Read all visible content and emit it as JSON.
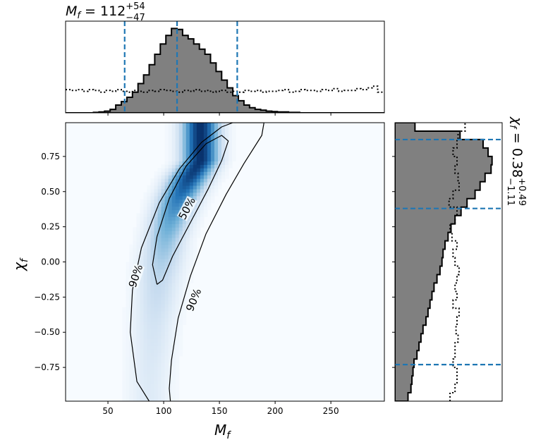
{
  "chart_data": [
    {
      "type": "heatmap",
      "panel": "joint",
      "xlabel_main": "M",
      "xlabel_sub": "f",
      "ylabel_main": "χ",
      "ylabel_sub": "f",
      "xlim": [
        12,
        298
      ],
      "ylim": [
        -0.99,
        0.99
      ],
      "xticks": [
        50,
        100,
        150,
        200,
        250
      ],
      "yticks": [
        0.75,
        0.5,
        0.25,
        0.0,
        -0.25,
        -0.5,
        -0.75
      ],
      "xtick_labels": [
        "50",
        "100",
        "150",
        "200",
        "250"
      ],
      "ytick_labels": [
        "0.75",
        "0.50",
        "0.25",
        "0.00",
        "−0.25",
        "−0.50",
        "−0.75"
      ],
      "colormap": "Blues",
      "ridge": [
        {
          "y": 0.72,
          "x": 133,
          "sigma": 11,
          "weight": 1.0
        },
        {
          "y": 0.6,
          "x": 123,
          "sigma": 12,
          "weight": 0.92
        },
        {
          "y": 0.45,
          "x": 113,
          "sigma": 12,
          "weight": 0.72
        },
        {
          "y": 0.3,
          "x": 106,
          "sigma": 12,
          "weight": 0.55
        },
        {
          "y": 0.15,
          "x": 101,
          "sigma": 12,
          "weight": 0.42
        },
        {
          "y": 0.0,
          "x": 98,
          "sigma": 13,
          "weight": 0.32
        },
        {
          "y": -0.15,
          "x": 95,
          "sigma": 13,
          "weight": 0.26
        },
        {
          "y": -0.3,
          "x": 93,
          "sigma": 13,
          "weight": 0.22
        },
        {
          "y": -0.45,
          "x": 91,
          "sigma": 13,
          "weight": 0.18
        },
        {
          "y": -0.6,
          "x": 90,
          "sigma": 13,
          "weight": 0.16
        },
        {
          "y": -0.75,
          "x": 88,
          "sigma": 13,
          "weight": 0.14
        },
        {
          "y": -0.9,
          "x": 87,
          "sigma": 13,
          "weight": 0.13
        }
      ],
      "contours": [
        {
          "label": "90%",
          "points": [
            [
              87,
              -0.99
            ],
            [
              76,
              -0.85
            ],
            [
              70,
              -0.5
            ],
            [
              72,
              -0.2
            ],
            [
              80,
              0.1
            ],
            [
              96,
              0.42
            ],
            [
              114,
              0.66
            ],
            [
              134,
              0.85
            ],
            [
              152,
              0.96
            ],
            [
              162,
              0.99
            ],
            [
              190,
              0.99
            ],
            [
              188,
              0.9
            ],
            [
              172,
              0.7
            ],
            [
              156,
              0.48
            ],
            [
              138,
              0.2
            ],
            [
              124,
              -0.1
            ],
            [
              113,
              -0.4
            ],
            [
              107,
              -0.7
            ],
            [
              105,
              -0.9
            ],
            [
              106,
              -0.99
            ]
          ],
          "labels_at": [
            {
              "x": 75,
              "y": -0.1,
              "rotate": -72
            },
            {
              "x": 127,
              "y": -0.27,
              "rotate": -68
            }
          ]
        },
        {
          "label": "50%",
          "points": [
            [
              94,
              -0.16
            ],
            [
              90,
              -0.02
            ],
            [
              94,
              0.18
            ],
            [
              105,
              0.45
            ],
            [
              120,
              0.68
            ],
            [
              138,
              0.84
            ],
            [
              152,
              0.9
            ],
            [
              158,
              0.86
            ],
            [
              152,
              0.72
            ],
            [
              140,
              0.52
            ],
            [
              124,
              0.28
            ],
            [
              108,
              0.04
            ],
            [
              99,
              -0.13
            ],
            [
              94,
              -0.16
            ]
          ],
          "labels_at": [
            {
              "x": 121,
              "y": 0.38,
              "rotate": -62
            }
          ]
        }
      ]
    },
    {
      "type": "histogram",
      "panel": "top-marginal",
      "title_main": "M",
      "title_sub": "f",
      "title_value": " = 112",
      "title_sup": "+54",
      "title_subscript": "−47",
      "xlim": [
        12,
        298
      ],
      "bin_edges": [
        12,
        17,
        22,
        27,
        32,
        37,
        42,
        47,
        52,
        57,
        62,
        67,
        72,
        77,
        82,
        87,
        92,
        97,
        102,
        107,
        112,
        117,
        122,
        127,
        132,
        137,
        142,
        147,
        152,
        157,
        162,
        167,
        172,
        177,
        182,
        187,
        192,
        197,
        202,
        207,
        212,
        217,
        222,
        227,
        232,
        237,
        242,
        247,
        252,
        257,
        262,
        267,
        272,
        277,
        282,
        287,
        292,
        298
      ],
      "posterior_counts": [
        0,
        0,
        0,
        0,
        0,
        0.005,
        0.01,
        0.02,
        0.04,
        0.09,
        0.13,
        0.18,
        0.24,
        0.34,
        0.44,
        0.56,
        0.68,
        0.8,
        0.9,
        0.98,
        0.97,
        0.9,
        0.86,
        0.8,
        0.74,
        0.68,
        0.58,
        0.48,
        0.38,
        0.29,
        0.2,
        0.14,
        0.09,
        0.06,
        0.04,
        0.03,
        0.02,
        0.015,
        0.01,
        0.01,
        0.005,
        0.005,
        0,
        0,
        0,
        0,
        0,
        0,
        0,
        0,
        0,
        0,
        0,
        0,
        0,
        0,
        0
      ],
      "prior_counts": [
        0.27,
        0.26,
        0.27,
        0.25,
        0.27,
        0.26,
        0.24,
        0.26,
        0.25,
        0.27,
        0.25,
        0.24,
        0.26,
        0.25,
        0.24,
        0.26,
        0.25,
        0.27,
        0.26,
        0.25,
        0.24,
        0.26,
        0.25,
        0.27,
        0.25,
        0.26,
        0.24,
        0.25,
        0.26,
        0.24,
        0.25,
        0.24,
        0.26,
        0.25,
        0.26,
        0.24,
        0.25,
        0.25,
        0.26,
        0.27,
        0.24,
        0.25,
        0.27,
        0.26,
        0.26,
        0.25,
        0.27,
        0.26,
        0.28,
        0.25,
        0.26,
        0.26,
        0.28,
        0.27,
        0.29,
        0.31,
        0.24
      ],
      "ylim": [
        0,
        1.0
      ],
      "quantile_lines": [
        65,
        112,
        166
      ]
    },
    {
      "type": "histogram",
      "orientation": "horizontal",
      "panel": "right-marginal",
      "title_main": "χ",
      "title_sub": "f",
      "title_value": " = 0.38",
      "title_sup": "+0.49",
      "title_subscript": "−1.11",
      "ylim": [
        -0.99,
        0.99
      ],
      "bin_edges": [
        -0.99,
        -0.93,
        -0.87,
        -0.81,
        -0.75,
        -0.69,
        -0.63,
        -0.57,
        -0.51,
        -0.45,
        -0.39,
        -0.33,
        -0.27,
        -0.21,
        -0.15,
        -0.09,
        -0.03,
        0.03,
        0.09,
        0.15,
        0.21,
        0.27,
        0.33,
        0.39,
        0.45,
        0.51,
        0.57,
        0.63,
        0.69,
        0.75,
        0.81,
        0.87,
        0.93,
        0.99
      ],
      "posterior_counts": [
        0.13,
        0.16,
        0.17,
        0.18,
        0.19,
        0.22,
        0.24,
        0.26,
        0.28,
        0.31,
        0.33,
        0.35,
        0.37,
        0.39,
        0.42,
        0.45,
        0.47,
        0.48,
        0.5,
        0.53,
        0.56,
        0.6,
        0.66,
        0.72,
        0.8,
        0.85,
        0.9,
        0.96,
        0.97,
        0.93,
        0.88,
        0.65,
        0.2
      ],
      "prior_counts": [
        0.55,
        0.6,
        0.62,
        0.62,
        0.58,
        0.6,
        0.6,
        0.63,
        0.61,
        0.62,
        0.64,
        0.58,
        0.62,
        0.6,
        0.62,
        0.64,
        0.6,
        0.58,
        0.62,
        0.57,
        0.55,
        0.6,
        0.62,
        0.54,
        0.58,
        0.64,
        0.63,
        0.6,
        0.62,
        0.58,
        0.62,
        0.63,
        0.7
      ],
      "xlim": [
        0,
        1.0
      ],
      "quantile_lines": [
        -0.73,
        0.38,
        0.87
      ]
    }
  ],
  "colors": {
    "fill": "#808080",
    "edge": "#000000",
    "quantile": "#1f77b4",
    "contour": "#000000"
  }
}
